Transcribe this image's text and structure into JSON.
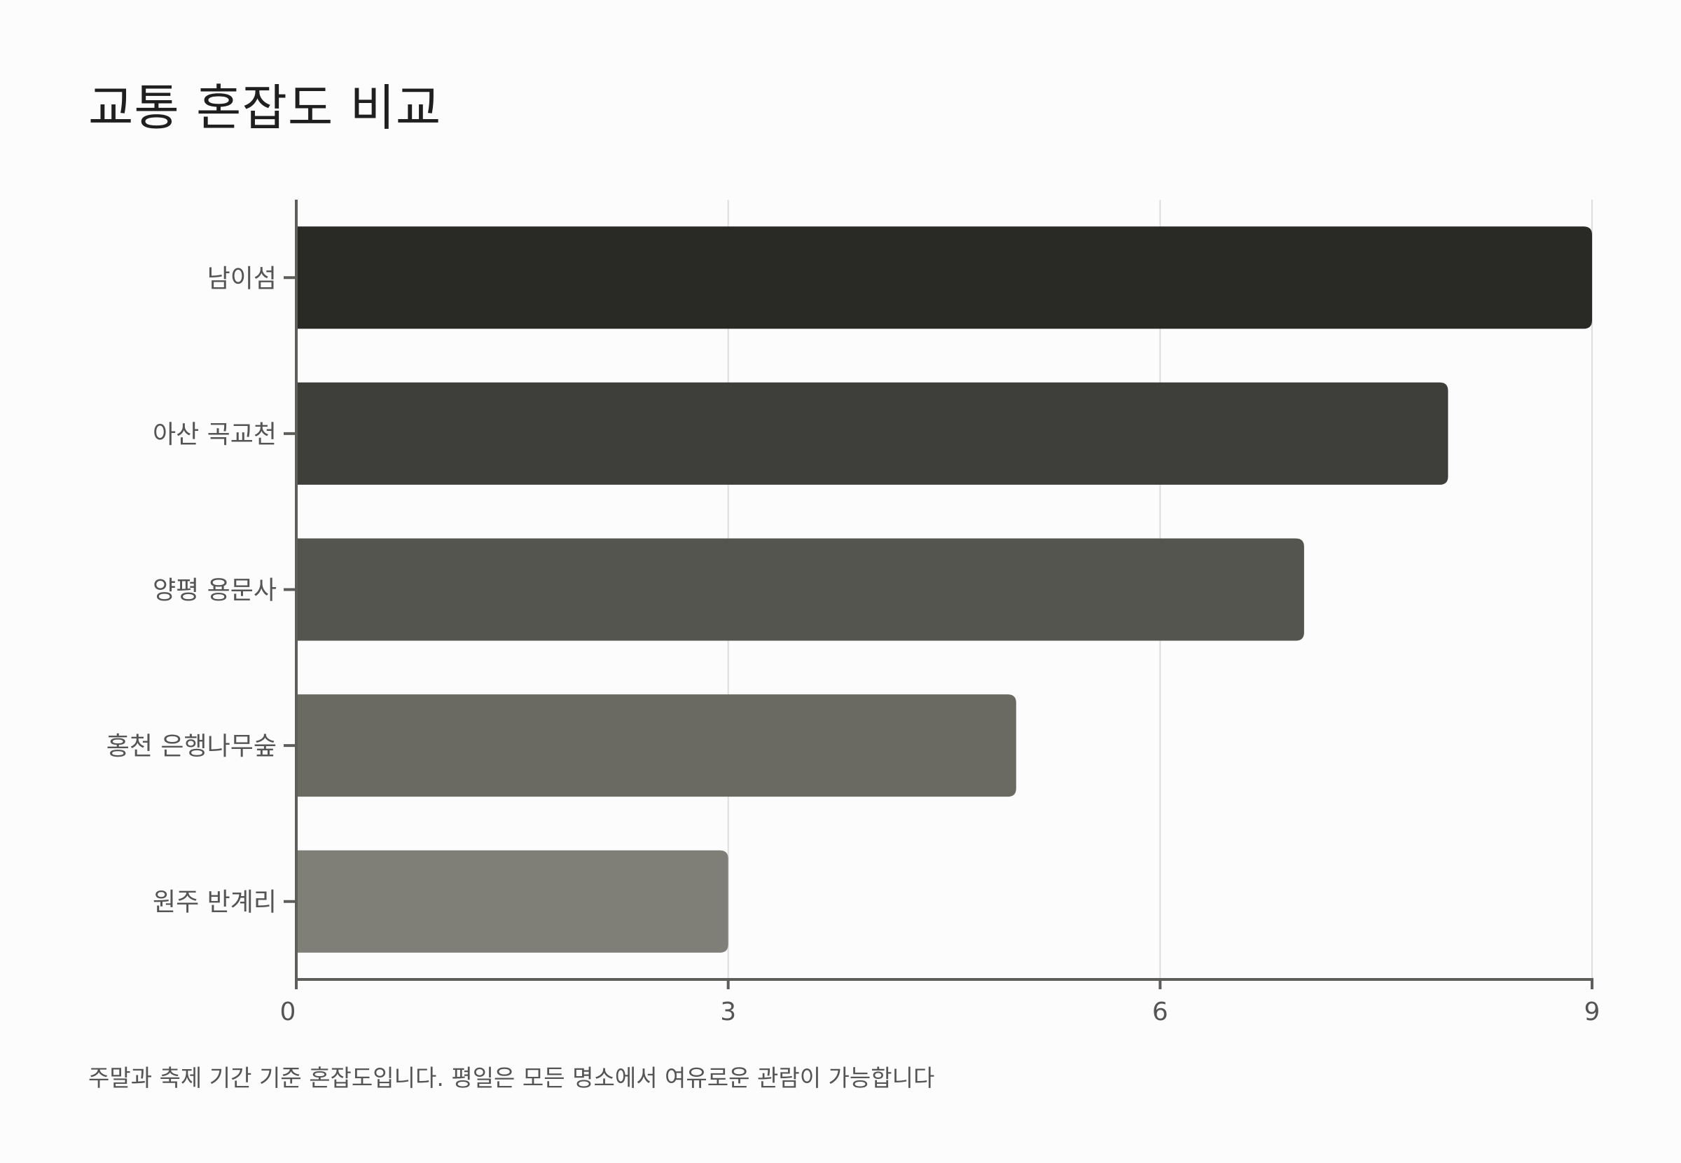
{
  "chart_data": {
    "type": "bar",
    "orientation": "horizontal",
    "title": "교통 혼잡도 비교",
    "xlabel": "",
    "ylabel": "",
    "categories": [
      "남이섬",
      "아산 곡교천",
      "양평 용문사",
      "홍천 은행나무숲",
      "원주 반계리"
    ],
    "values": [
      9,
      8,
      7,
      5,
      3
    ],
    "xlim": [
      0,
      9
    ],
    "xticks": [
      "0",
      "3",
      "6",
      "9"
    ],
    "grid": "vertical",
    "legend": "none",
    "note": "주말과 축제 기간 기준 혼잡도입니다. 평일은 모든 명소에서 여유로운 관람이 가능합니다",
    "colors": [
      "#292a26",
      "#3e3f3a",
      "#54554e",
      "#6a6a62",
      "#7f7f77"
    ],
    "axis_color": "#5d5d5a",
    "grid_color": "#dddddd"
  }
}
